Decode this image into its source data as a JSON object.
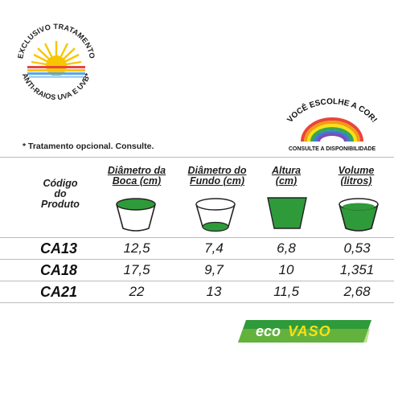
{
  "uv_badge": {
    "top_text": "EXCLUSIVO TRATAMENTO",
    "bottom_text": "ANTI-RAIOS UVA E UVB*"
  },
  "rainbow_badge": {
    "arc_text": "VOCÊ ESCOLHE A COR!",
    "bottom_text": "CONSULTE A DISPONIBILIDADE"
  },
  "footnote": "* Tratamento opcional. Consulte.",
  "table": {
    "headers": {
      "code": "Código\ndo\nProduto",
      "boca": "Diâmetro da\nBoca (cm)",
      "fundo": "Diâmetro do\nFundo (cm)",
      "altura": "Altura\n(cm)",
      "volume": "Volume\n(litros)"
    },
    "rows": [
      {
        "code": "CA13",
        "boca": "12,5",
        "fundo": "7,4",
        "altura": "6,8",
        "volume": "0,53"
      },
      {
        "code": "CA18",
        "boca": "17,5",
        "fundo": "9,7",
        "altura": "10",
        "volume": "1,351"
      },
      {
        "code": "CA21",
        "boca": "22",
        "fundo": "13",
        "altura": "11,5",
        "volume": "2,68"
      }
    ]
  },
  "brand": {
    "eco": "eco",
    "vaso": "VASO"
  },
  "colors": {
    "green": "#2f9a3a",
    "lime": "#8cc63f",
    "text": "#1a1a1a"
  }
}
